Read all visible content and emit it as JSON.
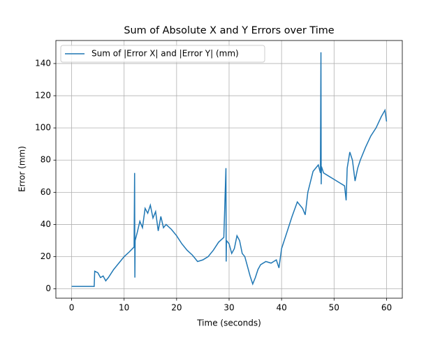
{
  "chart_data": {
    "type": "line",
    "title": "Sum of Absolute X and Y Errors over Time",
    "x_label": "Time (seconds)",
    "y_label": "Error (mm)",
    "x": [
      0,
      2,
      4.3,
      4.4,
      5,
      5.5,
      6,
      6.5,
      7,
      8,
      9,
      10,
      11,
      11.9,
      12,
      12.05,
      12.1,
      12.5,
      13,
      13.5,
      14,
      14.5,
      15,
      15.5,
      16,
      16.5,
      17,
      17.5,
      18,
      19,
      20,
      21,
      22,
      23,
      24,
      25,
      26,
      27,
      28,
      29,
      29.4,
      29.45,
      29.5,
      30,
      30.5,
      31,
      31.5,
      32,
      32.5,
      33,
      34,
      34.5,
      35,
      35.5,
      36,
      37,
      38,
      39,
      39.5,
      40,
      41,
      42,
      43,
      44,
      44.5,
      45,
      46,
      47,
      47.4,
      47.5,
      47.55,
      47.6,
      48,
      49,
      50,
      51,
      52,
      52.3,
      52.5,
      53,
      53.5,
      54,
      54.5,
      55,
      56,
      57,
      58,
      59,
      59.7,
      60
    ],
    "series": [
      {
        "name": "Sum of |Error X| and |Error Y| (mm)",
        "color": "#1f77b4",
        "values": [
          1.5,
          1.5,
          1.5,
          11,
          10,
          7,
          8,
          5,
          7,
          12,
          16,
          20,
          23,
          26,
          72,
          7,
          30,
          35,
          42,
          38,
          50,
          47,
          52,
          44,
          48,
          36,
          45,
          38,
          40,
          37,
          33,
          28,
          24,
          21,
          17,
          18,
          20,
          24,
          29,
          32,
          75,
          17,
          30,
          28,
          22,
          25,
          33,
          30,
          22,
          20,
          8,
          3,
          7,
          12,
          15,
          17,
          16,
          18,
          13,
          25,
          35,
          45,
          54,
          50,
          46,
          60,
          73,
          77,
          72,
          147,
          65,
          76,
          72,
          70,
          68,
          66,
          64,
          55,
          75,
          85,
          80,
          67,
          75,
          80,
          88,
          95,
          100,
          107,
          111,
          104
        ]
      }
    ],
    "xlim": [
      -3,
      63
    ],
    "ylim": [
      -5.8,
      154.3
    ],
    "xticks": [
      0,
      10,
      20,
      30,
      40,
      50,
      60
    ],
    "yticks": [
      0,
      20,
      40,
      60,
      80,
      100,
      120,
      140
    ],
    "grid": true,
    "legend": "upper left"
  }
}
